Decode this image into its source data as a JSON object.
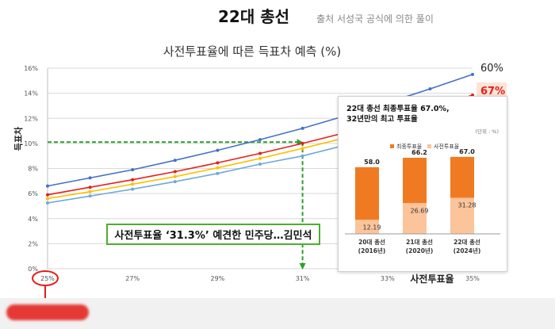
{
  "header": {
    "title": "22대 총선",
    "subtitle": "출처 서성국 공식에 의한 풀이"
  },
  "chart_data": [
    {
      "type": "line",
      "title": "사전투표율에  따른 득표차 예측 (%)",
      "xlabel": "사전투표율",
      "ylabel": "득표차",
      "xlim": [
        25,
        35
      ],
      "ylim": [
        0,
        16
      ],
      "x_ticks": [
        "25%",
        "27%",
        "29%",
        "31%",
        "33%",
        "35%"
      ],
      "y_ticks": [
        "0%",
        "2%",
        "4%",
        "6%",
        "8%",
        "10%",
        "12%",
        "14%",
        "16%"
      ],
      "grid": true,
      "series": [
        {
          "color": "#4472c4",
          "end_label": "60%",
          "x": [
            25,
            26,
            27,
            28,
            29,
            30,
            31,
            32,
            33,
            34,
            35
          ],
          "values": [
            6.6,
            7.25,
            7.9,
            8.65,
            9.45,
            10.3,
            11.2,
            12.2,
            13.25,
            14.35,
            15.5
          ]
        },
        {
          "color": "#e41e1e",
          "end_label": "67%",
          "x": [
            25,
            26,
            27,
            28,
            29,
            30,
            31,
            32,
            33,
            34,
            35
          ],
          "values": [
            5.9,
            6.5,
            7.1,
            7.75,
            8.45,
            9.2,
            10.0,
            10.85,
            11.8,
            12.8,
            13.85
          ]
        },
        {
          "color": "#ffc000",
          "x": [
            25,
            26,
            27,
            28,
            29,
            30,
            31,
            32,
            33,
            34,
            35
          ],
          "values": [
            5.6,
            6.15,
            6.75,
            7.35,
            8.05,
            8.8,
            9.6,
            10.45,
            11.4,
            12.4,
            13.45
          ]
        },
        {
          "color": "#6fa8dc",
          "x": [
            25,
            26,
            27,
            28,
            29,
            30,
            31,
            32,
            33,
            34,
            35
          ],
          "values": [
            5.25,
            5.8,
            6.35,
            6.95,
            7.6,
            8.35,
            9.0,
            9.85,
            10.75,
            11.75,
            12.8
          ]
        }
      ],
      "annotations": [
        {
          "type": "dashed-guide",
          "x": 31,
          "y": 10.1,
          "color": "#2ca02c"
        },
        {
          "type": "highlight-circle",
          "target": "25%",
          "color": "#e41e1e"
        }
      ]
    },
    {
      "type": "bar",
      "title": "22대 총선 최종투표율 67.0%, 32년만의 최고 투표율",
      "unit_note": "(단위 : %)",
      "categories": [
        "20대 총선 (2016년)",
        "21대 총선 (2020년)",
        "22대 총선 (2024년)"
      ],
      "series": [
        {
          "name": "최종투표율",
          "color": "#f07a22",
          "values": [
            58.0,
            66.2,
            67.0
          ]
        },
        {
          "name": "사전투표율",
          "color": "#fbc49a",
          "values": [
            12.19,
            26.69,
            31.28
          ]
        }
      ],
      "value_labels": {
        "totals": [
          "58.0",
          "66.2",
          "67.0"
        ],
        "early": [
          "12.19",
          "26.69",
          "31.28"
        ]
      },
      "ylim": [
        0,
        80
      ],
      "legend": "top"
    }
  ],
  "inset": {
    "title_line1": "22대 총선 최종투표율 67.0%,",
    "title_line2": "32년만의 최고 투표율",
    "unit": "(단위 : %)",
    "legend": [
      "최종투표율",
      "사전투표율"
    ],
    "categories": [
      [
        "20대 총선",
        "(2016년)"
      ],
      [
        "21대 총선",
        "(2020년)"
      ],
      [
        "22대 총선",
        "(2024년)"
      ]
    ]
  },
  "callout": {
    "text": "사전투표율 ‘31.3%’ 예견한 민주당…김민석"
  },
  "colors": {
    "callout_border": "#4caf2f",
    "guide": "#2ca02c",
    "accent_red": "#e41e1e",
    "highlight_box": "#fde4d4"
  }
}
